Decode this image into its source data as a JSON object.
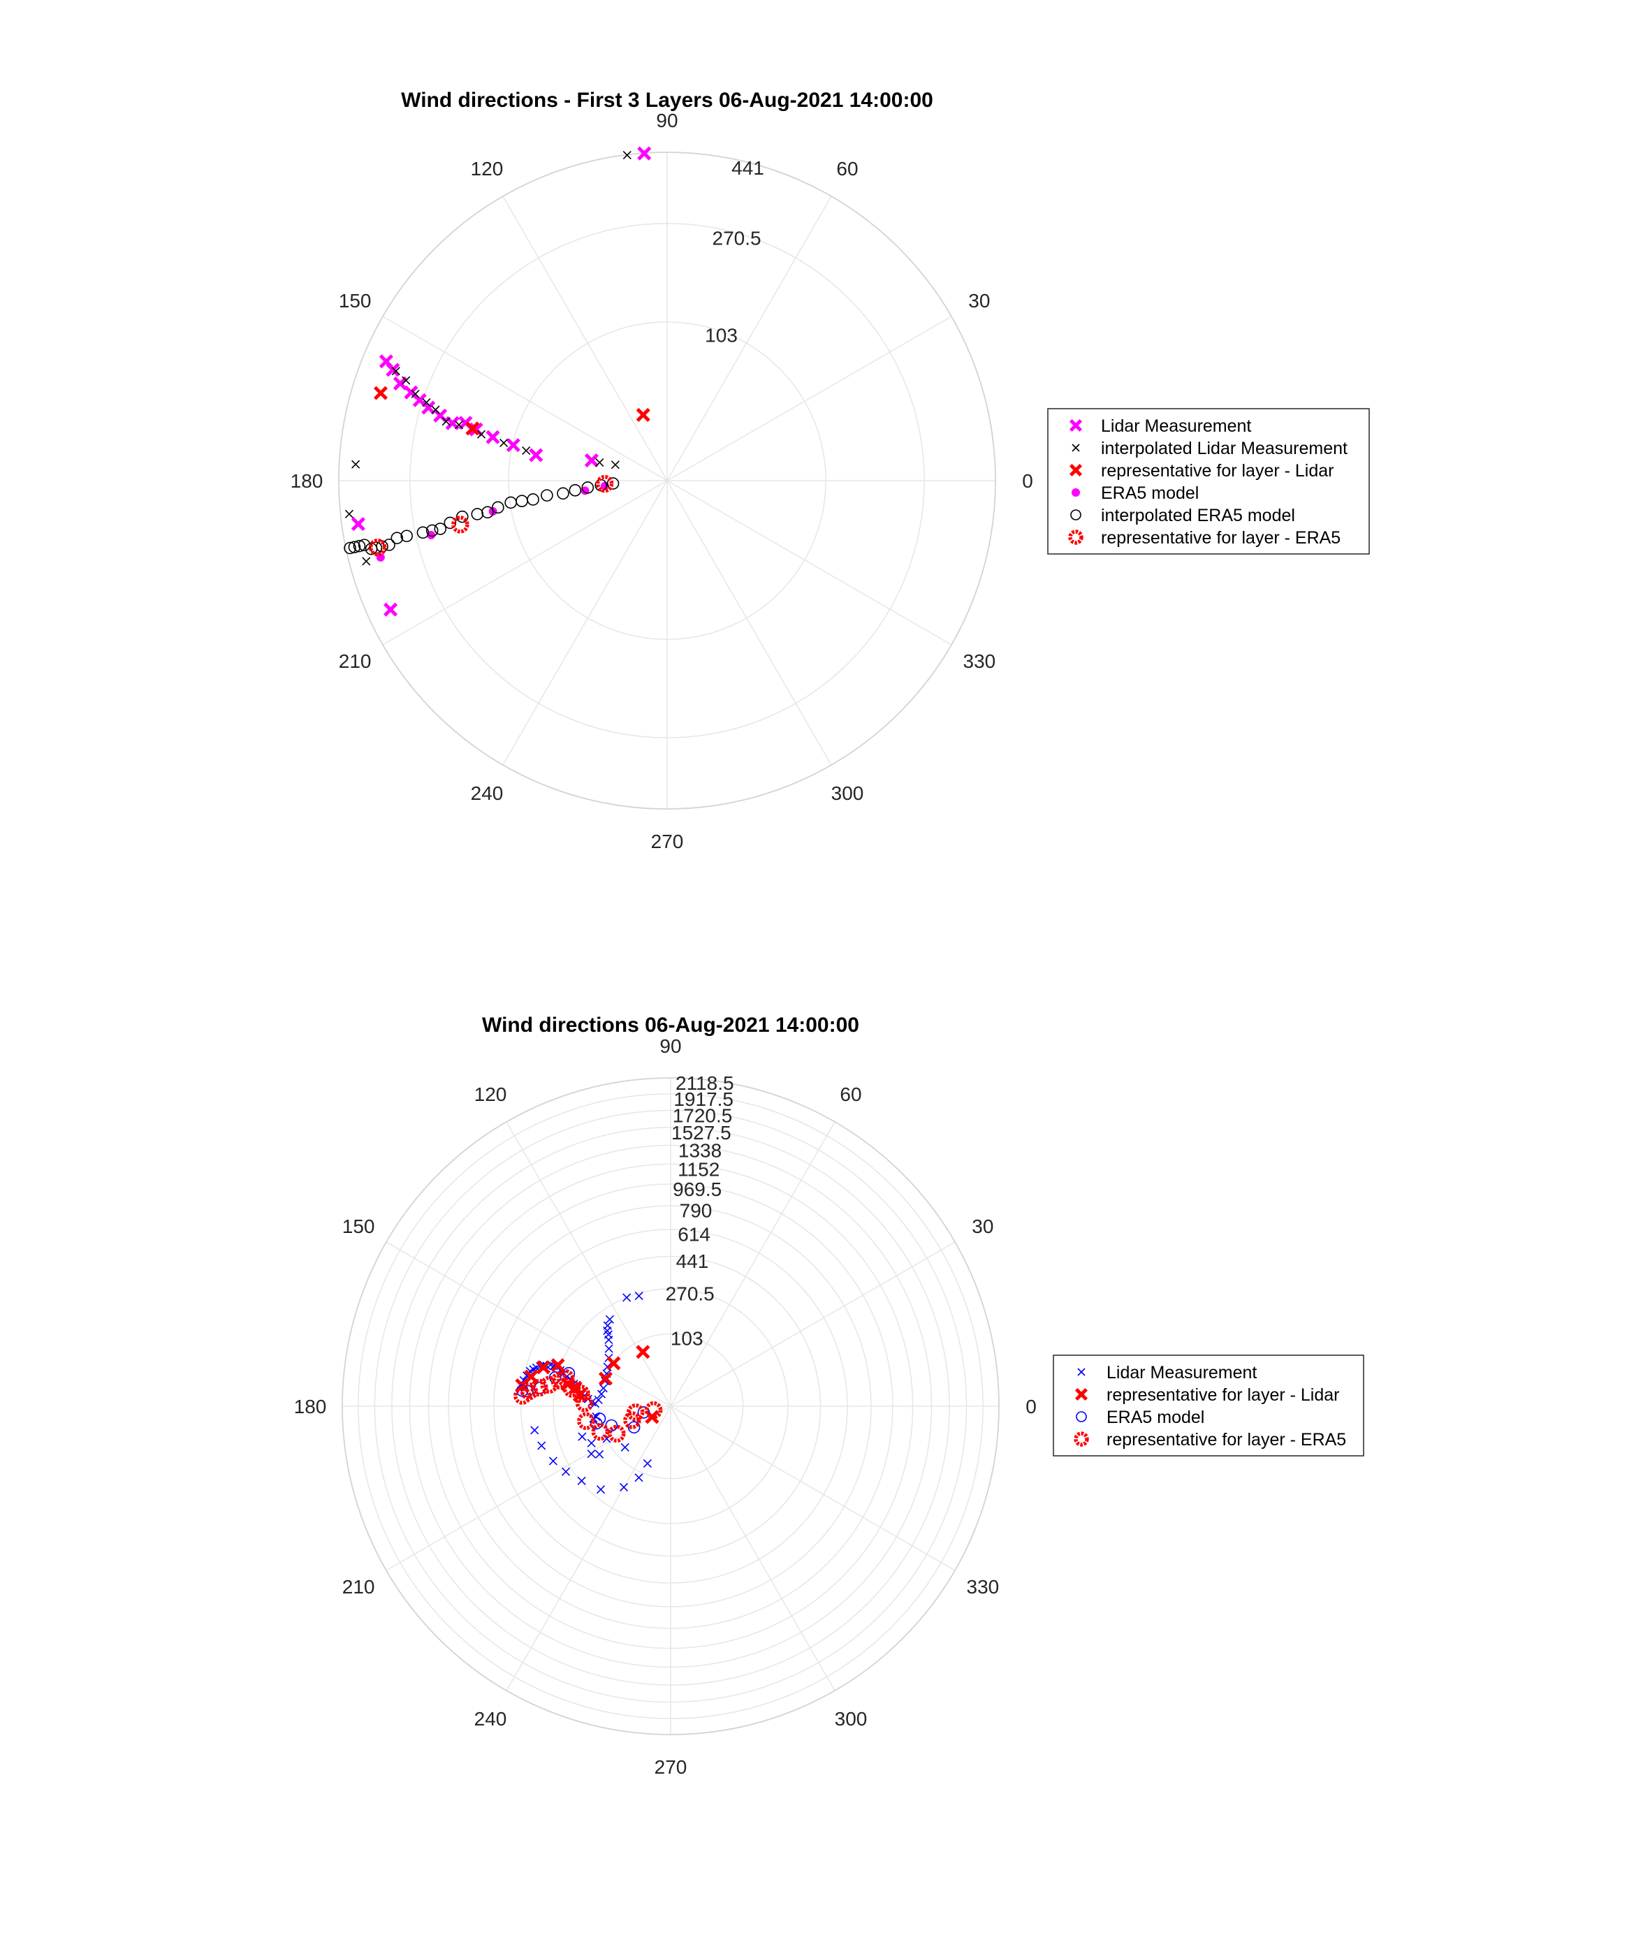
{
  "chart_data": [
    {
      "type": "scatter",
      "projection": "polar",
      "title": "Wind directions - First 3 Layers 06-Aug-2021 14:00:00",
      "theta_unit": "degrees",
      "theta_ticks": [
        "0",
        "30",
        "60",
        "90",
        "120",
        "150",
        "180",
        "210",
        "240",
        "270",
        "300",
        "330"
      ],
      "r_ticks": [
        103,
        270.5,
        441
      ],
      "r_tick_labels": [
        "103",
        "270.5",
        "441"
      ],
      "r_lim": [
        0,
        441
      ],
      "grid": true,
      "legend_position": "right",
      "legend": [
        {
          "label": "Lidar Measurement",
          "marker": "x-bold",
          "color": "#ff00ff"
        },
        {
          "label": "interpolated Lidar Measurement",
          "marker": "x",
          "color": "#000000"
        },
        {
          "label": "representative for layer - Lidar",
          "marker": "x-bold",
          "color": "#ff0000"
        },
        {
          "label": "ERA5 model",
          "marker": "dot",
          "color": "#ff00ff"
        },
        {
          "label": "interpolated ERA5 model",
          "marker": "circle",
          "color": "#000000"
        },
        {
          "label": "representative for layer - ERA5",
          "marker": "circle-bold",
          "color": "#ff0000"
        }
      ],
      "series": [
        {
          "name": "Lidar Measurement",
          "marker": "x-bold",
          "color": "#ff00ff",
          "points": [
            [
              94,
              440
            ],
            [
              188,
              398
            ],
            [
              205,
              381
            ],
            [
              157,
              381
            ],
            [
              158,
              358
            ],
            [
              160,
              330
            ],
            [
              161,
              300
            ],
            [
              162,
              277
            ],
            [
              163,
              255
            ],
            [
              164,
              228
            ],
            [
              165,
              202
            ],
            [
              164,
              180
            ],
            [
              165,
              160
            ],
            [
              166,
              132
            ],
            [
              167,
              102
            ],
            [
              169,
              73
            ],
            [
              165,
              25
            ]
          ]
        },
        {
          "name": "interpolated Lidar Measurement",
          "marker": "x",
          "color": "#000000",
          "points": [
            [
              97,
              440
            ],
            [
              177,
              398
            ],
            [
              186,
              418
            ],
            [
              195,
              397
            ],
            [
              158,
              350
            ],
            [
              159,
              320
            ],
            [
              161,
              290
            ],
            [
              162,
              262
            ],
            [
              163,
              240
            ],
            [
              165,
              214
            ],
            [
              165,
              190
            ],
            [
              166,
              150
            ],
            [
              167,
              115
            ],
            [
              168,
              85
            ],
            [
              165,
              20
            ],
            [
              163,
              12
            ]
          ]
        },
        {
          "name": "representative for layer - Lidar",
          "marker": "x-bold",
          "color": "#ff0000",
          "points": [
            [
              163,
              367
            ],
            [
              165,
              166
            ],
            [
              110,
              20
            ]
          ]
        },
        {
          "name": "ERA5 model",
          "marker": "dot",
          "color": "#ff00ff",
          "points": [
            [
              195,
              360
            ],
            [
              193,
              240
            ],
            [
              190,
              128
            ],
            [
              187,
              28
            ],
            [
              185,
              16
            ]
          ]
        },
        {
          "name": "interpolated ERA5 model",
          "marker": "circle",
          "color": "#000000",
          "points": [
            [
              192,
              430
            ],
            [
              192,
              418
            ],
            [
              192,
              405
            ],
            [
              192,
              392
            ],
            [
              193,
              377
            ],
            [
              193,
              365
            ],
            [
              193,
              350
            ],
            [
              193,
              333
            ],
            [
              192,
              312
            ],
            [
              192,
              290
            ],
            [
              192,
              255
            ],
            [
              192,
              236
            ],
            [
              192,
              220
            ],
            [
              191,
              200
            ],
            [
              190,
              177
            ],
            [
              190,
              152
            ],
            [
              190,
              136
            ],
            [
              189,
              120
            ],
            [
              188,
              102
            ],
            [
              188,
              88
            ],
            [
              188,
              75
            ],
            [
              187,
              60
            ],
            [
              187,
              45
            ],
            [
              186,
              35
            ],
            [
              185,
              26
            ],
            [
              184,
              18
            ],
            [
              183,
              12
            ]
          ]
        },
        {
          "name": "representative for layer - ERA5",
          "marker": "circle-bold",
          "color": "#ff0000",
          "points": [
            [
              193,
              361
            ],
            [
              192,
              183
            ],
            [
              183,
              16
            ]
          ]
        }
      ]
    },
    {
      "type": "scatter",
      "projection": "polar",
      "title": "Wind directions 06-Aug-2021 14:00:00",
      "theta_unit": "degrees",
      "theta_ticks": [
        "0",
        "30",
        "60",
        "90",
        "120",
        "150",
        "180",
        "210",
        "240",
        "270",
        "300",
        "330"
      ],
      "r_ticks": [
        103,
        270.5,
        441,
        614,
        790,
        969.5,
        1152,
        1338,
        1527.5,
        1720.5,
        1917.5,
        2118.5
      ],
      "r_tick_labels": [
        "103",
        "270.5",
        "441",
        "614",
        "790",
        "969.5",
        "1152",
        "1338",
        "1527.5",
        "1720.5",
        "1917.5",
        "2118.5"
      ],
      "r_lim": [
        0,
        2118.5
      ],
      "grid": true,
      "legend_position": "right",
      "legend": [
        {
          "label": "Lidar Measurement",
          "marker": "x",
          "color": "#0000ff"
        },
        {
          "label": "representative for layer - Lidar",
          "marker": "x-bold",
          "color": "#ff0000"
        },
        {
          "label": "ERA5 model",
          "marker": "circle",
          "color": "#0000ff"
        },
        {
          "label": "representative for layer - ERA5",
          "marker": "circle-bold",
          "color": "#ff0000"
        }
      ],
      "series": [
        {
          "name": "Lidar Measurement",
          "marker": "x",
          "color": "#0000ff",
          "points": [
            [
              112,
              270
            ],
            [
              106,
              259
            ],
            [
              125,
              221
            ],
            [
              128,
              206
            ],
            [
              130,
              191
            ],
            [
              131,
              177
            ],
            [
              133,
              162
            ],
            [
              137,
              140
            ],
            [
              142,
              121
            ],
            [
              148,
              109
            ],
            [
              153,
              101
            ],
            [
              159,
              97
            ],
            [
              165,
              95
            ],
            [
              170,
              97
            ],
            [
              175,
              103
            ],
            [
              178,
              112
            ],
            [
              177,
              122
            ],
            [
              175,
              135
            ],
            [
              173,
              148
            ],
            [
              171,
              162
            ],
            [
              169,
              177
            ],
            [
              167,
              194
            ],
            [
              165,
              210
            ],
            [
              164,
              229
            ],
            [
              163,
              246
            ],
            [
              162,
              264
            ],
            [
              161,
              283
            ],
            [
              161,
              300
            ],
            [
              161,
              317
            ],
            [
              162,
              334
            ],
            [
              162,
              351
            ],
            [
              163,
              366
            ],
            [
              164,
              383
            ],
            [
              165,
              397
            ],
            [
              166,
              412
            ],
            [
              168,
              425
            ],
            [
              170,
              437
            ],
            [
              172,
              448
            ],
            [
              189,
              120
            ],
            [
              188,
              111
            ],
            [
              199,
              172
            ],
            [
              211,
              168
            ],
            [
              205,
              150
            ],
            [
              214,
              145
            ],
            [
              207,
              101
            ],
            [
              222,
              74
            ],
            [
              248,
              75
            ],
            [
              246,
              120
            ],
            [
              240,
              172
            ],
            [
              230,
              232
            ],
            [
              220,
              265
            ],
            [
              212,
              300
            ],
            [
              205,
              330
            ],
            [
              197,
              358
            ],
            [
              190,
              375
            ]
          ]
        },
        {
          "name": "representative for layer - Lidar",
          "marker": "x-bold",
          "color": "#ff0000",
          "points": [
            [
              172,
              442
            ],
            [
              168,
              399
            ],
            [
              163,
              348
            ],
            [
              160,
              283
            ],
            [
              168,
              218
            ],
            [
              169,
              185
            ],
            [
              173,
              165
            ],
            [
              157,
              98
            ],
            [
              143,
              100
            ],
            [
              117,
              73
            ],
            [
              210,
              9
            ]
          ]
        },
        {
          "name": "ERA5 model",
          "marker": "circle",
          "color": "#0000ff",
          "points": [
            [
              174,
              437
            ],
            [
              174,
              408
            ],
            [
              172,
              341
            ],
            [
              166,
              278
            ],
            [
              162,
              225
            ],
            [
              193,
              114
            ],
            [
              190,
              102
            ],
            [
              198,
              76
            ],
            [
              210,
              35
            ],
            [
              193,
              15
            ]
          ]
        },
        {
          "name": "representative for layer - ERA5",
          "marker": "circle-bold",
          "color": "#ff0000",
          "points": [
            [
              176,
              434
            ],
            [
              174,
              398
            ],
            [
              172,
              346
            ],
            [
              170,
              299
            ],
            [
              167,
              255
            ],
            [
              165,
              232
            ],
            [
              170,
              198
            ],
            [
              172,
              160
            ],
            [
              178,
              146
            ],
            [
              190,
              145
            ],
            [
              200,
              110
            ],
            [
              207,
              72
            ],
            [
              200,
              33
            ],
            [
              190,
              25
            ],
            [
              193,
              6
            ]
          ]
        }
      ]
    }
  ]
}
